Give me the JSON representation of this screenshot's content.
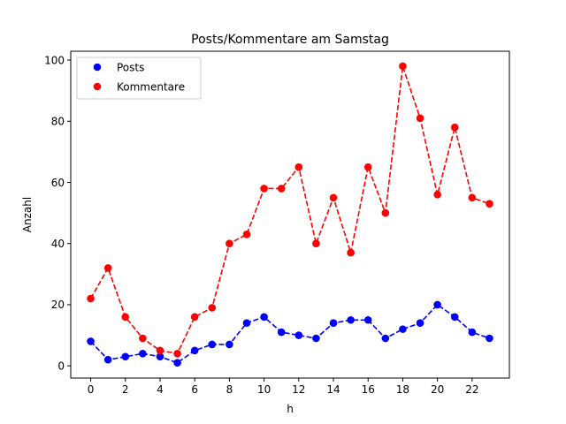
{
  "chart_data": {
    "type": "line",
    "title": "Posts/Kommentare am Samstag",
    "xlabel": "h",
    "ylabel": "Anzahl",
    "x": [
      0,
      1,
      2,
      3,
      4,
      5,
      6,
      7,
      8,
      9,
      10,
      11,
      12,
      13,
      14,
      15,
      16,
      17,
      18,
      19,
      20,
      21,
      22,
      23
    ],
    "xlim": [
      -1.15,
      24.15
    ],
    "ylim": [
      -4,
      102.9
    ],
    "xticks": [
      0,
      2,
      4,
      6,
      8,
      10,
      12,
      14,
      16,
      18,
      20,
      22
    ],
    "yticks": [
      0,
      20,
      40,
      60,
      80,
      100
    ],
    "grid": false,
    "legend_position": "top-left",
    "series": [
      {
        "name": "Posts",
        "color": "#0000ff",
        "line_style": "dashed",
        "marker": "circle",
        "values": [
          8,
          2,
          3,
          4,
          3,
          1,
          5,
          7,
          7,
          14,
          16,
          11,
          10,
          9,
          14,
          15,
          15,
          9,
          12,
          14,
          20,
          16,
          11,
          9
        ]
      },
      {
        "name": "Kommentare",
        "color": "#ff0000",
        "line_style": "dashed",
        "marker": "circle",
        "values": [
          22,
          32,
          16,
          9,
          5,
          4,
          16,
          19,
          40,
          43,
          58,
          58,
          65,
          40,
          55,
          37,
          65,
          50,
          98,
          81,
          56,
          78,
          55,
          53
        ]
      }
    ]
  }
}
